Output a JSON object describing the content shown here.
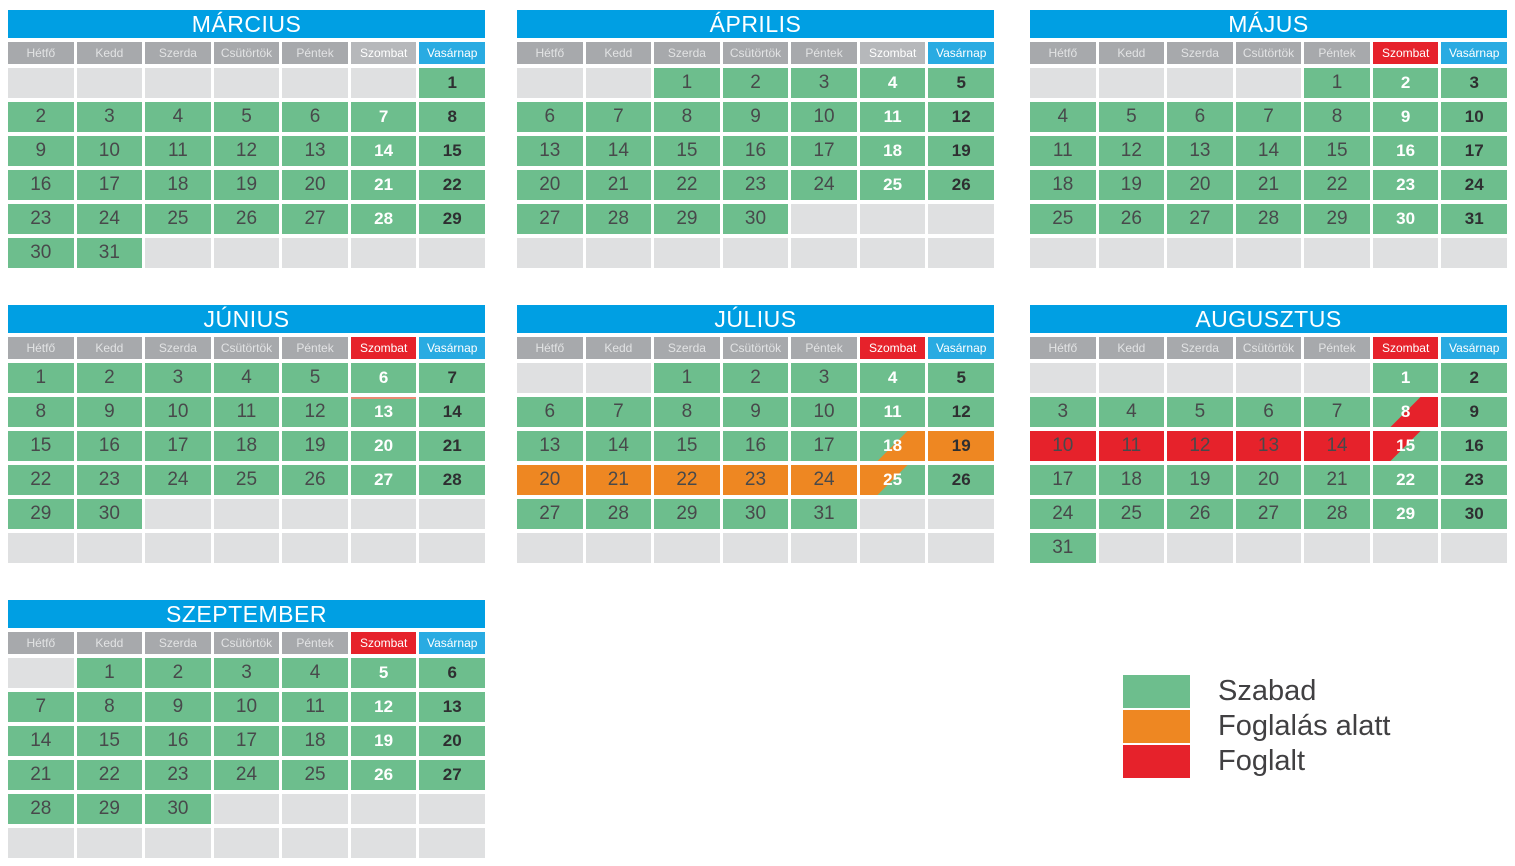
{
  "weekday_headers": [
    "Hétfő",
    "Kedd",
    "Szerda",
    "Csütörtök",
    "Péntek",
    "Szombat",
    "Vasárnap"
  ],
  "colors": {
    "free": "#6dbe8d",
    "pending": "#ee8722",
    "booked": "#e6222b",
    "title_blue": "#009fe3",
    "sunday_header_blue": "#29abe2",
    "weekday_header_gray": "#a7a9ac",
    "saturday_header_gray": "#b6b8bb",
    "empty_cell_gray": "#dfe0e1"
  },
  "months": [
    {
      "name": "MÁRCIUS",
      "saturday_header": "gray",
      "weeks": [
        [
          null,
          null,
          null,
          null,
          null,
          null,
          1
        ],
        [
          2,
          3,
          4,
          5,
          6,
          7,
          8
        ],
        [
          9,
          10,
          11,
          12,
          13,
          14,
          15
        ],
        [
          16,
          17,
          18,
          19,
          20,
          21,
          22
        ],
        [
          23,
          24,
          25,
          26,
          27,
          28,
          29
        ],
        [
          30,
          31,
          null,
          null,
          null,
          null,
          null
        ]
      ]
    },
    {
      "name": "ÁPRILIS",
      "saturday_header": "gray",
      "weeks": [
        [
          null,
          null,
          1,
          2,
          3,
          4,
          5
        ],
        [
          6,
          7,
          8,
          9,
          10,
          11,
          12
        ],
        [
          13,
          14,
          15,
          16,
          17,
          18,
          19
        ],
        [
          20,
          21,
          22,
          23,
          24,
          25,
          26
        ],
        [
          27,
          28,
          29,
          30,
          null,
          null,
          null
        ],
        [
          null,
          null,
          null,
          null,
          null,
          null,
          null
        ]
      ]
    },
    {
      "name": "MÁJUS",
      "saturday_header": "red",
      "weeks": [
        [
          null,
          null,
          null,
          null,
          1,
          2,
          3
        ],
        [
          4,
          5,
          6,
          7,
          8,
          9,
          10
        ],
        [
          11,
          12,
          13,
          14,
          15,
          16,
          17
        ],
        [
          18,
          19,
          20,
          21,
          22,
          23,
          24
        ],
        [
          25,
          26,
          27,
          28,
          29,
          30,
          31
        ],
        [
          null,
          null,
          null,
          null,
          null,
          null,
          null
        ]
      ]
    },
    {
      "name": "JÚNIUS",
      "saturday_header": "red",
      "weeks": [
        [
          1,
          2,
          3,
          4,
          5,
          6,
          7
        ],
        [
          8,
          9,
          10,
          11,
          12,
          {
            "day": 13,
            "status": "free",
            "mark": "red-topline"
          },
          14
        ],
        [
          15,
          16,
          17,
          18,
          19,
          20,
          21
        ],
        [
          22,
          23,
          24,
          25,
          26,
          27,
          28
        ],
        [
          29,
          30,
          null,
          null,
          null,
          null,
          null
        ],
        [
          null,
          null,
          null,
          null,
          null,
          null,
          null
        ]
      ]
    },
    {
      "name": "JÚLIUS",
      "saturday_header": "red",
      "weeks": [
        [
          null,
          null,
          1,
          2,
          3,
          4,
          5
        ],
        [
          6,
          7,
          8,
          9,
          10,
          11,
          12
        ],
        [
          13,
          14,
          15,
          16,
          17,
          {
            "day": 18,
            "status": "free-pending"
          },
          {
            "day": 19,
            "status": "pending"
          }
        ],
        [
          {
            "day": 20,
            "status": "pending"
          },
          {
            "day": 21,
            "status": "pending"
          },
          {
            "day": 22,
            "status": "pending"
          },
          {
            "day": 23,
            "status": "pending"
          },
          {
            "day": 24,
            "status": "pending"
          },
          {
            "day": 25,
            "status": "pending-free"
          },
          26
        ],
        [
          27,
          28,
          29,
          30,
          31,
          null,
          null
        ],
        [
          null,
          null,
          null,
          null,
          null,
          null,
          null
        ]
      ]
    },
    {
      "name": "AUGUSZTUS",
      "saturday_header": "red",
      "weeks": [
        [
          null,
          null,
          null,
          null,
          null,
          1,
          2
        ],
        [
          3,
          4,
          5,
          6,
          7,
          {
            "day": 8,
            "status": "free-booked"
          },
          9
        ],
        [
          {
            "day": 10,
            "status": "booked"
          },
          {
            "day": 11,
            "status": "booked"
          },
          {
            "day": 12,
            "status": "booked"
          },
          {
            "day": 13,
            "status": "booked"
          },
          {
            "day": 14,
            "status": "booked"
          },
          {
            "day": 15,
            "status": "booked-free"
          },
          16
        ],
        [
          17,
          18,
          19,
          20,
          21,
          22,
          23
        ],
        [
          24,
          25,
          26,
          27,
          28,
          29,
          30
        ],
        [
          31,
          null,
          null,
          null,
          null,
          null,
          null
        ]
      ]
    },
    {
      "name": "SZEPTEMBER",
      "saturday_header": "red",
      "weeks": [
        [
          null,
          1,
          2,
          3,
          4,
          5,
          6
        ],
        [
          7,
          8,
          9,
          10,
          11,
          12,
          13
        ],
        [
          14,
          15,
          16,
          17,
          18,
          19,
          20
        ],
        [
          21,
          22,
          23,
          24,
          25,
          26,
          27
        ],
        [
          28,
          29,
          30,
          null,
          null,
          null,
          null
        ],
        [
          null,
          null,
          null,
          null,
          null,
          null,
          null
        ]
      ]
    }
  ],
  "legend": {
    "items": [
      {
        "label": "Szabad",
        "status": "free",
        "color": "#6dbe8d"
      },
      {
        "label": "Foglalás alatt",
        "status": "pending",
        "color": "#ee8722"
      },
      {
        "label": "Foglalt",
        "status": "booked",
        "color": "#e6222b"
      }
    ]
  }
}
